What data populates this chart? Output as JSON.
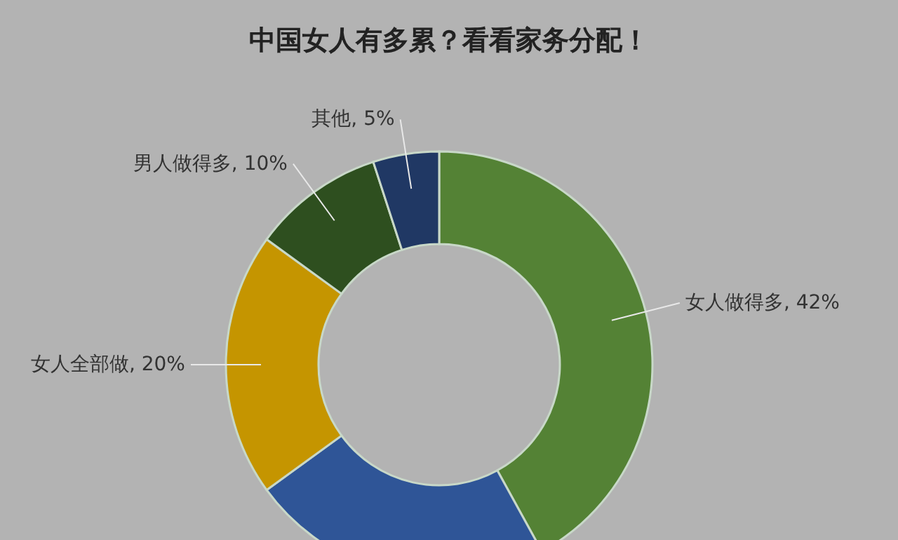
{
  "chart_data": {
    "type": "donut",
    "title": "中国女人有多累？看看家务分配！",
    "categories": [
      "女人做得多",
      null,
      "女人全部做",
      "男人做得多",
      "其他"
    ],
    "values": [
      42,
      23,
      20,
      10,
      5
    ],
    "value_labels": [
      "42%",
      null,
      "20%",
      "10%",
      "5%"
    ],
    "colors": [
      "#548235",
      "#2f5597",
      "#c59500",
      "#2e4f1f",
      "#203864"
    ]
  }
}
